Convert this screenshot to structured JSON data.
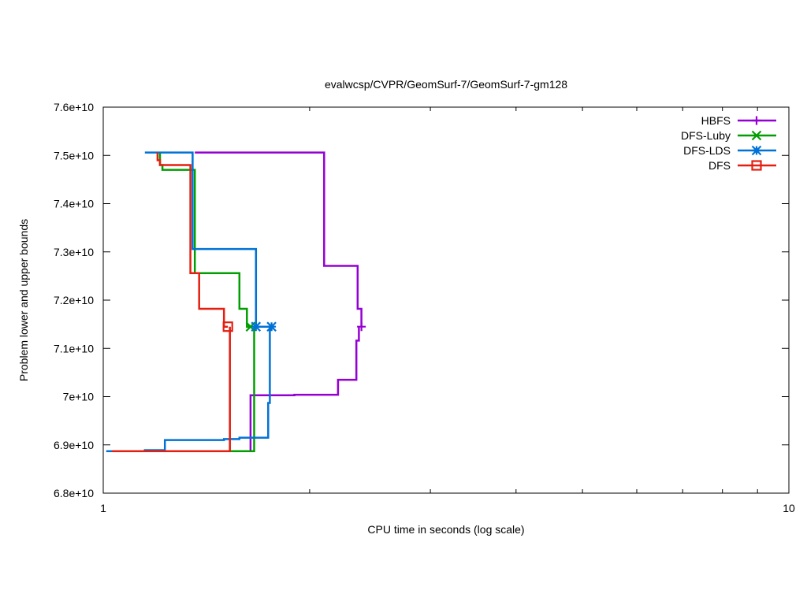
{
  "chart_data": {
    "type": "line",
    "title": "evalwcsp/CVPR/GeomSurf-7/GeomSurf-7-gm128",
    "xlabel": "CPU time in seconds (log scale)",
    "ylabel": "Problem lower and upper bounds",
    "xscale": "log",
    "xlim": [
      1,
      10
    ],
    "ylim": [
      68000000000,
      76000000000
    ],
    "x_ticks": [
      {
        "value": 1,
        "label": "1"
      },
      {
        "value": 10,
        "label": "10"
      }
    ],
    "x_minor_ticks": [
      2,
      3,
      4,
      5,
      6,
      7,
      8,
      9
    ],
    "y_ticks": [
      {
        "value": 68000000000,
        "label": "6.8e+10"
      },
      {
        "value": 69000000000,
        "label": "6.9e+10"
      },
      {
        "value": 70000000000,
        "label": "7e+10"
      },
      {
        "value": 71000000000,
        "label": "7.1e+10"
      },
      {
        "value": 72000000000,
        "label": "7.2e+10"
      },
      {
        "value": 73000000000,
        "label": "7.3e+10"
      },
      {
        "value": 74000000000,
        "label": "7.4e+10"
      },
      {
        "value": 75000000000,
        "label": "7.5e+10"
      },
      {
        "value": 76000000000,
        "label": "7.6e+10"
      }
    ],
    "grid": false,
    "legend_position": "top-right",
    "series": [
      {
        "name": "HBFS",
        "color": "#9400d3",
        "marker": "plus",
        "final_point": [
          2.38,
          71450000000
        ],
        "upper": [
          [
            1.36,
            75060000000
          ],
          [
            2.1,
            75060000000
          ],
          [
            2.1,
            72710000000
          ],
          [
            2.35,
            72710000000
          ],
          [
            2.35,
            71820000000
          ],
          [
            2.38,
            71820000000
          ],
          [
            2.38,
            71450000000
          ]
        ],
        "lower": [
          [
            1.06,
            68870000000
          ],
          [
            1.64,
            68870000000
          ],
          [
            1.64,
            70030000000
          ],
          [
            1.9,
            70030000000
          ],
          [
            1.9,
            70040000000
          ],
          [
            2.2,
            70040000000
          ],
          [
            2.2,
            70350000000
          ],
          [
            2.34,
            70350000000
          ],
          [
            2.34,
            71160000000
          ],
          [
            2.36,
            71160000000
          ],
          [
            2.36,
            71450000000
          ]
        ]
      },
      {
        "name": "DFS-Luby",
        "color": "#009e00",
        "marker": "cross",
        "final_point": [
          1.64,
          71450000000
        ],
        "upper": [
          [
            1.21,
            75060000000
          ],
          [
            1.21,
            74800000000
          ],
          [
            1.22,
            74800000000
          ],
          [
            1.22,
            74700000000
          ],
          [
            1.36,
            74700000000
          ],
          [
            1.36,
            72560000000
          ],
          [
            1.58,
            72560000000
          ],
          [
            1.58,
            71820000000
          ],
          [
            1.62,
            71820000000
          ],
          [
            1.62,
            71450000000
          ],
          [
            1.64,
            71450000000
          ]
        ],
        "lower": [
          [
            1.06,
            68870000000
          ],
          [
            1.66,
            68870000000
          ],
          [
            1.66,
            71450000000
          ]
        ]
      },
      {
        "name": "DFS-LDS",
        "color": "#0072d6",
        "marker": "star",
        "final_point": [
          1.67,
          71450000000
        ],
        "final_point_2": [
          1.76,
          71450000000
        ],
        "upper": [
          [
            1.15,
            75060000000
          ],
          [
            1.35,
            75060000000
          ],
          [
            1.35,
            73060000000
          ],
          [
            1.67,
            73060000000
          ],
          [
            1.67,
            71450000000
          ],
          [
            1.76,
            71450000000
          ]
        ],
        "lower": [
          [
            1.01,
            68870000000
          ],
          [
            1.15,
            68870000000
          ],
          [
            1.15,
            68890000000
          ],
          [
            1.23,
            68890000000
          ],
          [
            1.23,
            69100000000
          ],
          [
            1.5,
            69100000000
          ],
          [
            1.5,
            69120000000
          ],
          [
            1.58,
            69120000000
          ],
          [
            1.58,
            69150000000
          ],
          [
            1.74,
            69150000000
          ],
          [
            1.74,
            69870000000
          ],
          [
            1.75,
            69870000000
          ],
          [
            1.75,
            71450000000
          ]
        ]
      },
      {
        "name": "DFS",
        "color": "#e51e10",
        "marker": "square",
        "final_point": [
          1.52,
          71450000000
        ],
        "upper": [
          [
            1.2,
            75060000000
          ],
          [
            1.2,
            74900000000
          ],
          [
            1.21,
            74900000000
          ],
          [
            1.21,
            74800000000
          ],
          [
            1.34,
            74800000000
          ],
          [
            1.34,
            72560000000
          ],
          [
            1.38,
            72560000000
          ],
          [
            1.38,
            71820000000
          ],
          [
            1.5,
            71820000000
          ],
          [
            1.5,
            71450000000
          ],
          [
            1.52,
            71450000000
          ]
        ],
        "lower": [
          [
            1.03,
            68870000000
          ],
          [
            1.53,
            68870000000
          ],
          [
            1.53,
            71450000000
          ]
        ]
      }
    ]
  }
}
